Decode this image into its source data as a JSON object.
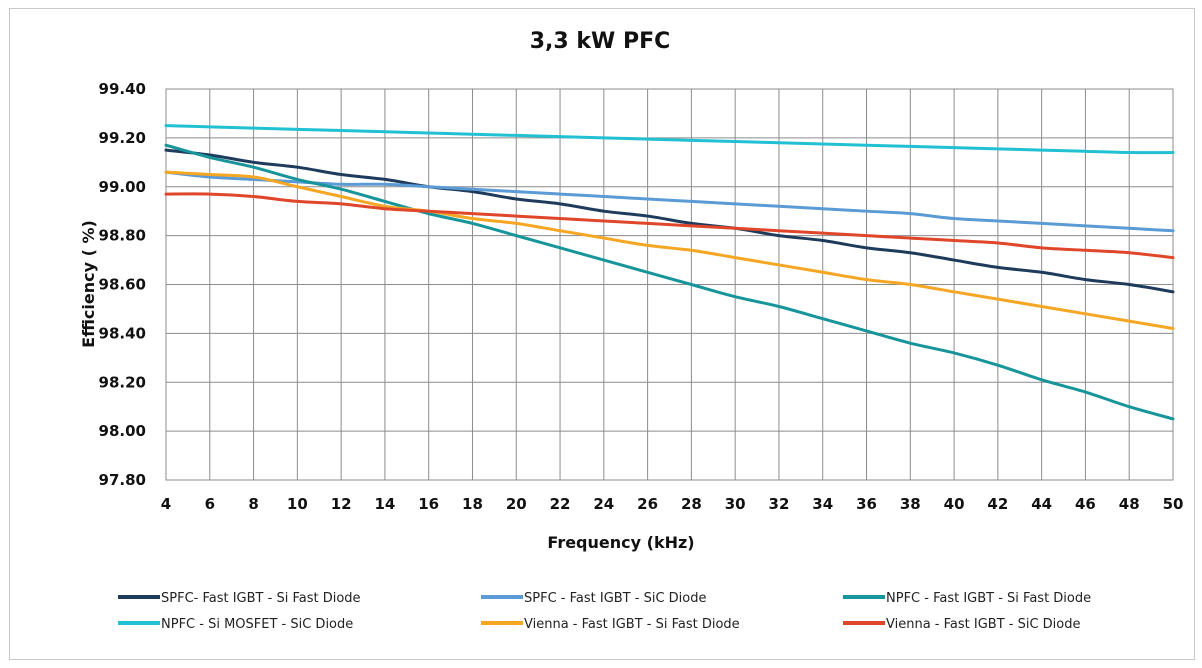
{
  "chart_data": {
    "type": "line",
    "title": "3,3 kW PFC",
    "xlabel": "Frequency (kHz)",
    "ylabel": "Efficiency  ( %)",
    "xlim": [
      4,
      50
    ],
    "ylim": [
      97.8,
      99.4
    ],
    "x_ticks": [
      "4",
      "6",
      "8",
      "10",
      "12",
      "14",
      "16",
      "18",
      "20",
      "22",
      "24",
      "26",
      "28",
      "30",
      "32",
      "34",
      "36",
      "38",
      "40",
      "42",
      "44",
      "46",
      "48",
      "50"
    ],
    "y_ticks": [
      "99.40",
      "99.20",
      "99.00",
      "98.80",
      "98.60",
      "98.40",
      "98.20",
      "98.00",
      "97.80"
    ],
    "grid": true,
    "legend_position": "bottom",
    "x": [
      4,
      6,
      8,
      10,
      12,
      14,
      16,
      18,
      20,
      22,
      24,
      26,
      28,
      30,
      32,
      34,
      36,
      38,
      40,
      42,
      44,
      46,
      48,
      50
    ],
    "series": [
      {
        "name": "SPFC- Fast IGBT - Si Fast Diode",
        "color": "#1f3b5c",
        "values": [
          99.15,
          99.13,
          99.1,
          99.08,
          99.05,
          99.03,
          99.0,
          98.98,
          98.95,
          98.93,
          98.9,
          98.88,
          98.85,
          98.83,
          98.8,
          98.78,
          98.75,
          98.73,
          98.7,
          98.67,
          98.65,
          98.62,
          98.6,
          98.57
        ]
      },
      {
        "name": "SPFC - Fast IGBT - SiC Diode",
        "color": "#5b9bd5",
        "values": [
          99.06,
          99.04,
          99.03,
          99.02,
          99.01,
          99.01,
          99.0,
          98.99,
          98.98,
          98.97,
          98.96,
          98.95,
          98.94,
          98.93,
          98.92,
          98.91,
          98.9,
          98.89,
          98.87,
          98.86,
          98.85,
          98.84,
          98.83,
          98.82
        ]
      },
      {
        "name": "NPFC - Fast IGBT - Si Fast Diode",
        "color": "#17959a",
        "values": [
          99.17,
          99.12,
          99.08,
          99.03,
          98.99,
          98.94,
          98.89,
          98.85,
          98.8,
          98.75,
          98.7,
          98.65,
          98.6,
          98.55,
          98.51,
          98.46,
          98.41,
          98.36,
          98.32,
          98.27,
          98.21,
          98.16,
          98.1,
          98.05
        ]
      },
      {
        "name": "NPFC - Si MOSFET - SiC Diode",
        "color": "#21c1d3",
        "values": [
          99.25,
          99.245,
          99.24,
          99.235,
          99.23,
          99.225,
          99.22,
          99.215,
          99.21,
          99.205,
          99.2,
          99.195,
          99.19,
          99.185,
          99.18,
          99.175,
          99.17,
          99.165,
          99.16,
          99.155,
          99.15,
          99.145,
          99.14,
          99.14
        ]
      },
      {
        "name": "Vienna - Fast IGBT - Si Fast Diode",
        "color": "#f5a623",
        "values": [
          99.06,
          99.05,
          99.04,
          99.0,
          98.96,
          98.92,
          98.9,
          98.87,
          98.85,
          98.82,
          98.79,
          98.76,
          98.74,
          98.71,
          98.68,
          98.65,
          98.62,
          98.6,
          98.57,
          98.54,
          98.51,
          98.48,
          98.45,
          98.42
        ]
      },
      {
        "name": "Vienna - Fast IGBT - SiC Diode",
        "color": "#e0462a",
        "values": [
          98.97,
          98.97,
          98.96,
          98.94,
          98.93,
          98.91,
          98.9,
          98.89,
          98.88,
          98.87,
          98.86,
          98.85,
          98.84,
          98.83,
          98.82,
          98.81,
          98.8,
          98.79,
          98.78,
          98.77,
          98.75,
          98.74,
          98.73,
          98.71
        ]
      }
    ]
  }
}
